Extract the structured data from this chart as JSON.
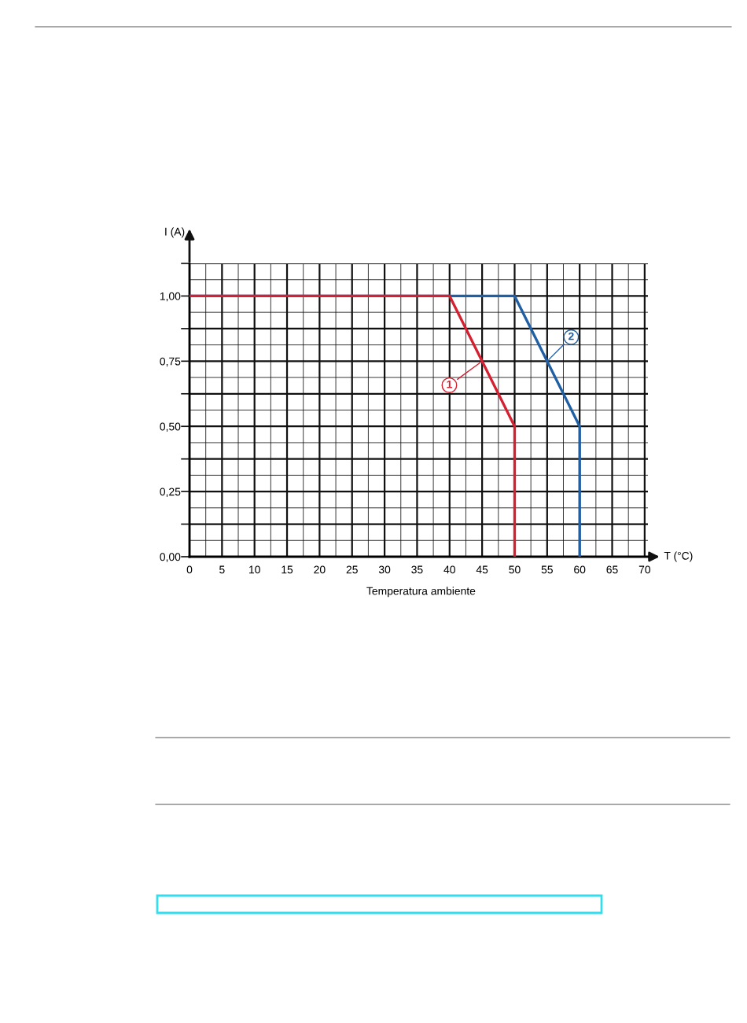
{
  "chart_data": {
    "type": "line",
    "ylabel": "I (A)",
    "xlabel": "T (°C)",
    "annotations": [
      "Temperatura ambiente"
    ],
    "xlim": [
      0,
      70.5
    ],
    "ylim": [
      0,
      1.125
    ],
    "xticks": [
      0,
      5,
      10,
      15,
      20,
      25,
      30,
      35,
      40,
      45,
      50,
      55,
      60,
      65,
      70
    ],
    "yticks": [
      {
        "value": 0,
        "label": "0,00"
      },
      {
        "value": 0.25,
        "label": "0,25"
      },
      {
        "value": 0.5,
        "label": "0,50"
      },
      {
        "value": 0.75,
        "label": "0,75"
      },
      {
        "value": 1,
        "label": "1,00"
      }
    ],
    "grid": true,
    "marker": "none",
    "line_style": "solid",
    "series": [
      {
        "name": "2",
        "color": "#1f5fa6",
        "x": [
          0,
          50,
          60,
          60
        ],
        "values": [
          1,
          1,
          0.5,
          0
        ]
      },
      {
        "name": "1",
        "color": "#d42030",
        "x": [
          0,
          40,
          50,
          50
        ],
        "values": [
          1,
          1,
          0.5,
          0
        ]
      }
    ]
  }
}
